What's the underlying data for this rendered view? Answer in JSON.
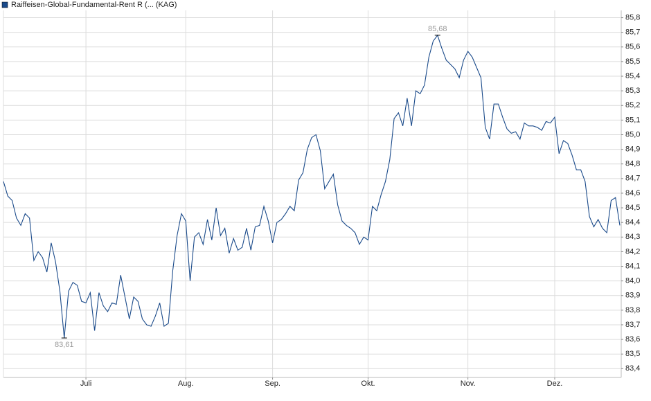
{
  "chart_data": {
    "type": "line",
    "series": [
      {
        "name": "Raiffeisen-Global-Fundamental-Rent R (... (KAG)",
        "color": "#1a4a8a",
        "values": [
          84.68,
          84.58,
          84.55,
          84.43,
          84.38,
          84.46,
          84.43,
          84.14,
          84.2,
          84.16,
          84.06,
          84.26,
          84.13,
          83.93,
          83.61,
          83.93,
          83.99,
          83.97,
          83.86,
          83.85,
          83.92,
          83.66,
          83.92,
          83.83,
          83.79,
          83.85,
          83.84,
          84.04,
          83.89,
          83.74,
          83.89,
          83.86,
          83.74,
          83.7,
          83.69,
          83.76,
          83.85,
          83.69,
          83.71,
          84.07,
          84.31,
          84.46,
          84.41,
          84.0,
          84.3,
          84.33,
          84.25,
          84.42,
          84.28,
          84.5,
          84.31,
          84.36,
          84.19,
          84.29,
          84.21,
          84.23,
          84.36,
          84.21,
          84.37,
          84.38,
          84.51,
          84.41,
          84.26,
          84.4,
          84.42,
          84.46,
          84.51,
          84.48,
          84.69,
          84.74,
          84.9,
          84.98,
          85.0,
          84.89,
          84.63,
          84.68,
          84.73,
          84.52,
          84.41,
          84.38,
          84.36,
          84.33,
          84.25,
          84.3,
          84.28,
          84.51,
          84.48,
          84.59,
          84.68,
          84.83,
          85.11,
          85.15,
          85.06,
          85.25,
          85.06,
          85.3,
          85.28,
          85.34,
          85.53,
          85.64,
          85.68,
          85.59,
          85.51,
          85.48,
          85.45,
          85.39,
          85.51,
          85.57,
          85.53,
          85.46,
          85.39,
          85.05,
          84.97,
          85.21,
          85.21,
          85.12,
          85.04,
          85.01,
          85.02,
          84.97,
          85.08,
          85.06,
          85.06,
          85.05,
          85.03,
          85.09,
          85.08,
          85.12,
          84.87,
          84.96,
          84.94,
          84.86,
          84.76,
          84.76,
          84.68,
          84.44,
          84.37,
          84.42,
          84.36,
          84.33,
          84.55,
          84.57,
          84.38
        ]
      }
    ],
    "categories": [
      null,
      null,
      null,
      null,
      null,
      null,
      null,
      null,
      null,
      null,
      null,
      null,
      null,
      null,
      null,
      null,
      null,
      null,
      null,
      "Juli",
      null,
      null,
      null,
      null,
      null,
      null,
      null,
      null,
      null,
      null,
      null,
      null,
      null,
      null,
      null,
      null,
      null,
      null,
      null,
      null,
      null,
      null,
      "Aug.",
      null,
      null,
      null,
      null,
      null,
      null,
      null,
      null,
      null,
      null,
      null,
      null,
      null,
      null,
      null,
      null,
      null,
      null,
      null,
      "Sep.",
      null,
      null,
      null,
      null,
      null,
      null,
      null,
      null,
      null,
      null,
      null,
      null,
      null,
      null,
      null,
      null,
      null,
      null,
      null,
      null,
      null,
      "Okt.",
      null,
      null,
      null,
      null,
      null,
      null,
      null,
      null,
      null,
      null,
      null,
      null,
      null,
      null,
      null,
      null,
      null,
      null,
      null,
      null,
      null,
      null,
      "Nov.",
      null,
      null,
      null,
      null,
      null,
      null,
      null,
      null,
      null,
      null,
      null,
      null,
      null,
      null,
      null,
      null,
      null,
      null,
      null,
      "Dez.",
      null,
      null,
      null,
      null,
      null,
      null,
      null,
      null,
      null,
      null,
      null,
      null,
      null,
      null,
      null
    ],
    "ylim": [
      83.34,
      85.85
    ],
    "yticks": [
      {
        "value": 83.4,
        "label": "83,4"
      },
      {
        "value": 83.5,
        "label": "83,5"
      },
      {
        "value": 83.6,
        "label": "83,6"
      },
      {
        "value": 83.7,
        "label": "83,7"
      },
      {
        "value": 83.8,
        "label": "83,8"
      },
      {
        "value": 83.9,
        "label": "83,9"
      },
      {
        "value": 84.0,
        "label": "84,0"
      },
      {
        "value": 84.1,
        "label": "84,1"
      },
      {
        "value": 84.2,
        "label": "84,2"
      },
      {
        "value": 84.3,
        "label": "84,3"
      },
      {
        "value": 84.4,
        "label": "84,4"
      },
      {
        "value": 84.5,
        "label": "84,5"
      },
      {
        "value": 84.6,
        "label": "84,6"
      },
      {
        "value": 84.7,
        "label": "84,7"
      },
      {
        "value": 84.8,
        "label": "84,8"
      },
      {
        "value": 84.9,
        "label": "84,9"
      },
      {
        "value": 85.0,
        "label": "85,0"
      },
      {
        "value": 85.1,
        "label": "85,1"
      },
      {
        "value": 85.2,
        "label": "85,2"
      },
      {
        "value": 85.3,
        "label": "85,3"
      },
      {
        "value": 85.4,
        "label": "85,4"
      },
      {
        "value": 85.5,
        "label": "85,5"
      },
      {
        "value": 85.6,
        "label": "85,6"
      },
      {
        "value": 85.7,
        "label": "85,7"
      },
      {
        "value": 85.8,
        "label": "85,8"
      }
    ],
    "annotations": [
      {
        "label": "85,68",
        "value": 85.68
      },
      {
        "label": "83,61",
        "value": 83.61
      }
    ],
    "grid": true
  }
}
